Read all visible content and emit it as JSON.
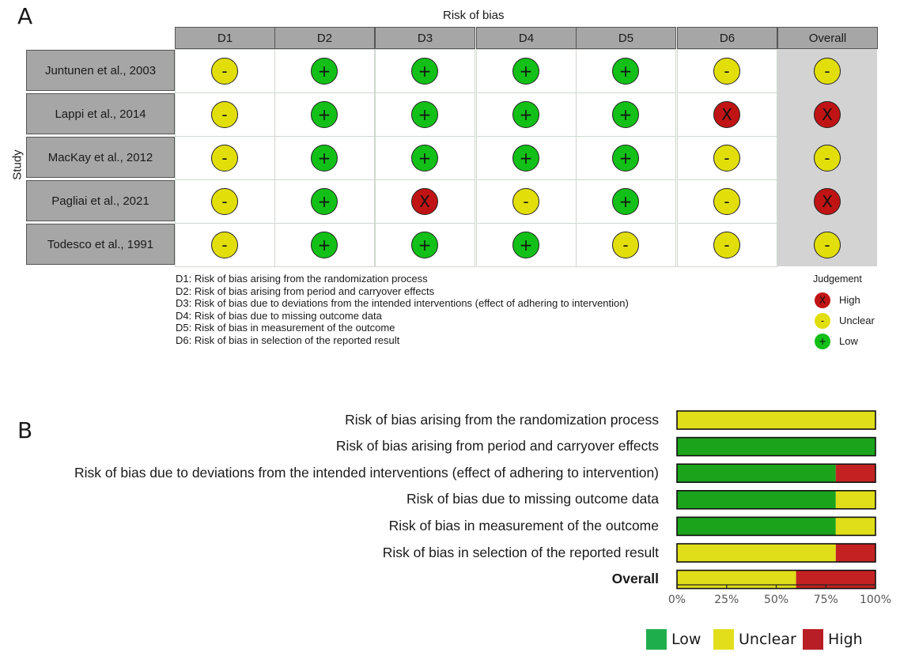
{
  "panel_a": {
    "letter": "A",
    "title": "Risk of bias",
    "y_label": "Study",
    "columns": [
      "D1",
      "D2",
      "D3",
      "D4",
      "D5",
      "D6",
      "Overall"
    ],
    "studies": [
      "Juntunen et al., 2003",
      "Lappi et al., 2014",
      "MacKay et al., 2012",
      "Pagliai et al., 2021",
      "Todesco et al., 1991"
    ],
    "judgements": [
      [
        "Unclear",
        "Low",
        "Low",
        "Low",
        "Low",
        "Unclear",
        "Unclear"
      ],
      [
        "Unclear",
        "Low",
        "Low",
        "Low",
        "Low",
        "High",
        "High"
      ],
      [
        "Unclear",
        "Low",
        "Low",
        "Low",
        "Low",
        "Unclear",
        "Unclear"
      ],
      [
        "Unclear",
        "Low",
        "High",
        "Unclear",
        "Low",
        "Unclear",
        "High"
      ],
      [
        "Unclear",
        "Low",
        "Low",
        "Low",
        "Unclear",
        "Unclear",
        "Unclear"
      ]
    ],
    "domain_legend": [
      "D1: Risk of bias arising from the randomization process",
      "D2: Risk of bias arising from period and carryover effects",
      "D3: Risk of bias due to deviations from the intended interventions (effect of adhering to intervention)",
      "D4: Risk of bias due to missing outcome data",
      "D5: Risk of bias in measurement of the outcome",
      "D6: Risk of bias in selection of the reported result"
    ],
    "judgement_legend": {
      "title": "Judgement",
      "items": [
        {
          "symbol": "X",
          "label": "High"
        },
        {
          "symbol": "-",
          "label": "Unclear"
        },
        {
          "symbol": "+",
          "label": "Low"
        }
      ]
    },
    "symbols": {
      "Low": "+",
      "Unclear": "-",
      "High": "X"
    }
  },
  "colors": {
    "low_dot": "#12c018",
    "unclear_dot": "#e2de0a",
    "high_dot": "#c01414",
    "low_bar": "#1ca31c",
    "unclear_bar": "#e0de18",
    "high_bar": "#c42222",
    "legend_low": "#1fae4c",
    "legend_unclear": "#e3de1c",
    "legend_high": "#b81e25"
  },
  "chart_data": {
    "type": "bar",
    "orientation": "horizontal-stacked",
    "letter": "B",
    "categories": [
      "Risk of bias arising from the randomization process",
      "Risk of bias arising from period and carryover effects",
      "Risk of bias due to deviations from the intended interventions (effect of adhering to intervention)",
      "Risk of bias due to missing outcome data",
      "Risk of bias in measurement of the outcome",
      "Risk of bias in selection of the reported result",
      "Overall"
    ],
    "series": [
      {
        "name": "Low",
        "values": [
          0,
          100,
          80,
          80,
          80,
          0,
          0
        ]
      },
      {
        "name": "Unclear",
        "values": [
          100,
          0,
          0,
          20,
          20,
          80,
          60
        ]
      },
      {
        "name": "High",
        "values": [
          0,
          0,
          20,
          0,
          0,
          20,
          40
        ]
      }
    ],
    "xlim": [
      0,
      100
    ],
    "x_ticks": [
      "0%",
      "25%",
      "50%",
      "75%",
      "100%"
    ],
    "legend": [
      "Low",
      "Unclear",
      "High"
    ],
    "legend_placement": "bottom-right"
  }
}
